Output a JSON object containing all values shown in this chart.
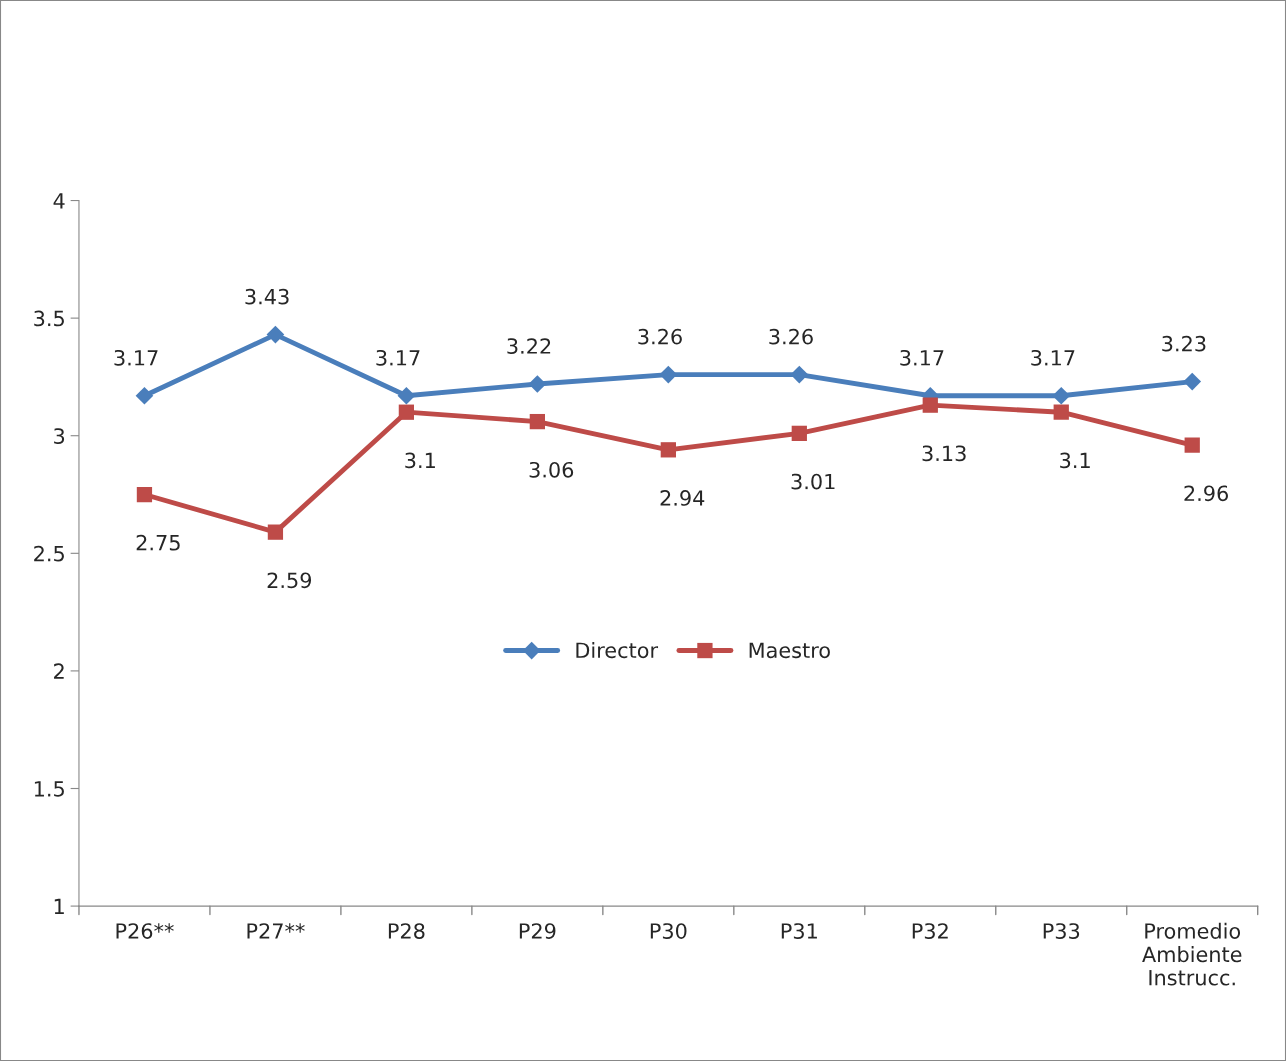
{
  "chart_data": {
    "type": "line",
    "categories": [
      "P26**",
      "P27**",
      "P28",
      "P29",
      "P30",
      "P31",
      "P32",
      "P33",
      "Promedio\nAmbiente\nInstrucc."
    ],
    "series": [
      {
        "name": "Director",
        "color": "#4a7ebb",
        "marker": "diamond",
        "values": [
          3.17,
          3.43,
          3.17,
          3.22,
          3.26,
          3.26,
          3.17,
          3.17,
          3.23
        ]
      },
      {
        "name": "Maestro",
        "color": "#be4b48",
        "marker": "square",
        "values": [
          2.75,
          2.59,
          3.1,
          3.06,
          2.94,
          3.01,
          3.13,
          3.1,
          2.96
        ]
      }
    ],
    "ylim": [
      1,
      4
    ],
    "yticks": [
      1,
      1.5,
      2,
      2.5,
      3,
      3.5,
      4
    ],
    "data_labels": true,
    "legend": "center",
    "grid": false,
    "line_style": "solid"
  }
}
